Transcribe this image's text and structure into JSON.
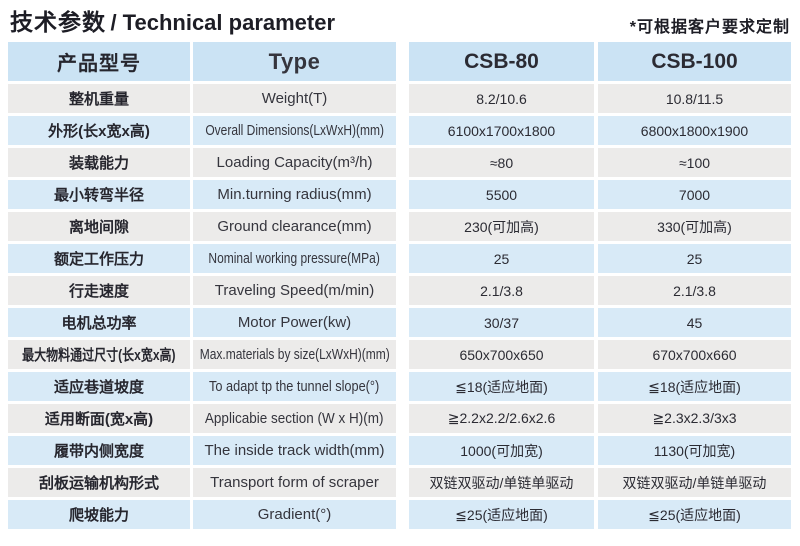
{
  "page": {
    "title_cn": "技术参数",
    "title_en": "/ Technical parameter",
    "note": "*可根据客户要求定制"
  },
  "colors": {
    "header_bg": "#cbe3f4",
    "row_blue": "#d8eaf7",
    "row_gray": "#ecebea",
    "text": "#26262e"
  },
  "table": {
    "columns": [
      "产品型号",
      "Type",
      "CSB-80",
      "CSB-100"
    ],
    "rows": [
      {
        "cn": "整机重量",
        "en": "Weight(T)",
        "v80": "8.2/10.6",
        "v100": "10.8/11.5"
      },
      {
        "cn": "外形(长x宽x高)",
        "en": "Overall Dimensions(LxWxH)(mm)",
        "v80": "6100x1700x1800",
        "v100": "6800x1800x1900"
      },
      {
        "cn": "装载能力",
        "en": "Loading Capacity(m³/h)",
        "v80": "≈80",
        "v100": "≈100"
      },
      {
        "cn": "最小转弯半径",
        "en": "Min.turning radius(mm)",
        "v80": "5500",
        "v100": "7000"
      },
      {
        "cn": "离地间隙",
        "en": "Ground clearance(mm)",
        "v80": "230(可加高)",
        "v100": "330(可加高)"
      },
      {
        "cn": "额定工作压力",
        "en": "Nominal working pressure(MPa)",
        "v80": "25",
        "v100": "25"
      },
      {
        "cn": "行走速度",
        "en": "Traveling Speed(m/min)",
        "v80": "2.1/3.8",
        "v100": "2.1/3.8"
      },
      {
        "cn": "电机总功率",
        "en": "Motor Power(kw)",
        "v80": "30/37",
        "v100": "45"
      },
      {
        "cn": "最大物料通过尺寸(长x宽x高)",
        "en": "Max.materials by size(LxWxH)(mm)",
        "v80": "650x700x650",
        "v100": "670x700x660"
      },
      {
        "cn": "适应巷道坡度",
        "en": "To adapt tp the tunnel slope(°)",
        "v80": "≦18(适应地面)",
        "v100": "≦18(适应地面)"
      },
      {
        "cn": "适用断面(宽x高)",
        "en": "Applicabie section (W x H)(m)",
        "v80": "≧2.2x2.2/2.6x2.6",
        "v100": "≧2.3x2.3/3x3"
      },
      {
        "cn": "履带内侧宽度",
        "en": "The inside track width(mm)",
        "v80": "1000(可加宽)",
        "v100": "1130(可加宽)"
      },
      {
        "cn": "刮板运输机构形式",
        "en": "Transport form of scraper",
        "v80": "双链双驱动/单链单驱动",
        "v100": "双链双驱动/单链单驱动"
      },
      {
        "cn": "爬坡能力",
        "en": "Gradient(°)",
        "v80": "≦25(适应地面)",
        "v100": "≦25(适应地面)"
      }
    ]
  }
}
